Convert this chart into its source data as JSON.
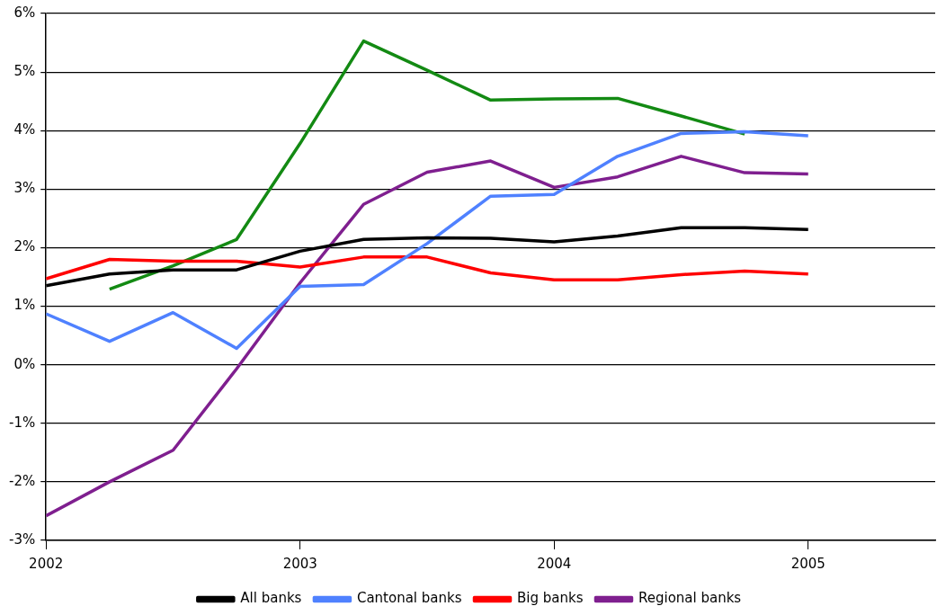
{
  "chart_data": {
    "type": "line",
    "x": [
      2002,
      2002.25,
      2002.5,
      2002.75,
      2003,
      2003.25,
      2003.5,
      2003.75,
      2004,
      2004.25,
      2004.5,
      2004.75,
      2005
    ],
    "series": [
      {
        "name": "All banks",
        "color": "#000000",
        "values": [
          1.35,
          1.55,
          1.62,
          1.62,
          1.94,
          2.14,
          2.17,
          2.16,
          2.1,
          2.2,
          2.34,
          2.34,
          2.31
        ]
      },
      {
        "name": "Cantonal banks",
        "color": "#4f81ff",
        "values": [
          0.87,
          0.4,
          0.89,
          0.28,
          1.34,
          1.37,
          2.07,
          2.88,
          2.91,
          3.56,
          3.95,
          3.98,
          3.91
        ]
      },
      {
        "name": "Big banks",
        "color": "#ff0000",
        "values": [
          1.47,
          1.8,
          1.77,
          1.77,
          1.67,
          1.84,
          1.84,
          1.57,
          1.45,
          1.45,
          1.54,
          1.6,
          1.55
        ]
      },
      {
        "name": "Regional banks",
        "color": "#7f1f8f",
        "values": [
          -2.58,
          -2.0,
          -1.46,
          -0.07,
          1.4,
          2.74,
          3.29,
          3.48,
          3.03,
          3.21,
          3.56,
          3.28,
          3.26
        ]
      },
      {
        "color": "#138a13",
        "values": [
          null,
          1.29,
          1.69,
          2.14,
          3.78,
          5.53,
          5.03,
          4.52,
          4.54,
          4.55,
          4.25,
          3.94,
          null
        ]
      }
    ],
    "xlim": [
      2002,
      2005.5
    ],
    "xticks": [
      2002,
      2003,
      2004,
      2005
    ],
    "ylim": [
      -3,
      6
    ],
    "yticks": [
      {
        "value": -3,
        "label": "-3%"
      },
      {
        "value": -2,
        "label": "-2%"
      },
      {
        "value": -1,
        "label": "-1%"
      },
      {
        "value": 0,
        "label": "0%"
      },
      {
        "value": 1,
        "label": "1%"
      },
      {
        "value": 2,
        "label": "2%"
      },
      {
        "value": 3,
        "label": "3%"
      },
      {
        "value": 4,
        "label": "4%"
      },
      {
        "value": 5,
        "label": "5%"
      },
      {
        "value": 6,
        "label": "6%"
      }
    ],
    "grid": "y",
    "legend": "bottom",
    "marker": "none",
    "line_style": "solid"
  }
}
